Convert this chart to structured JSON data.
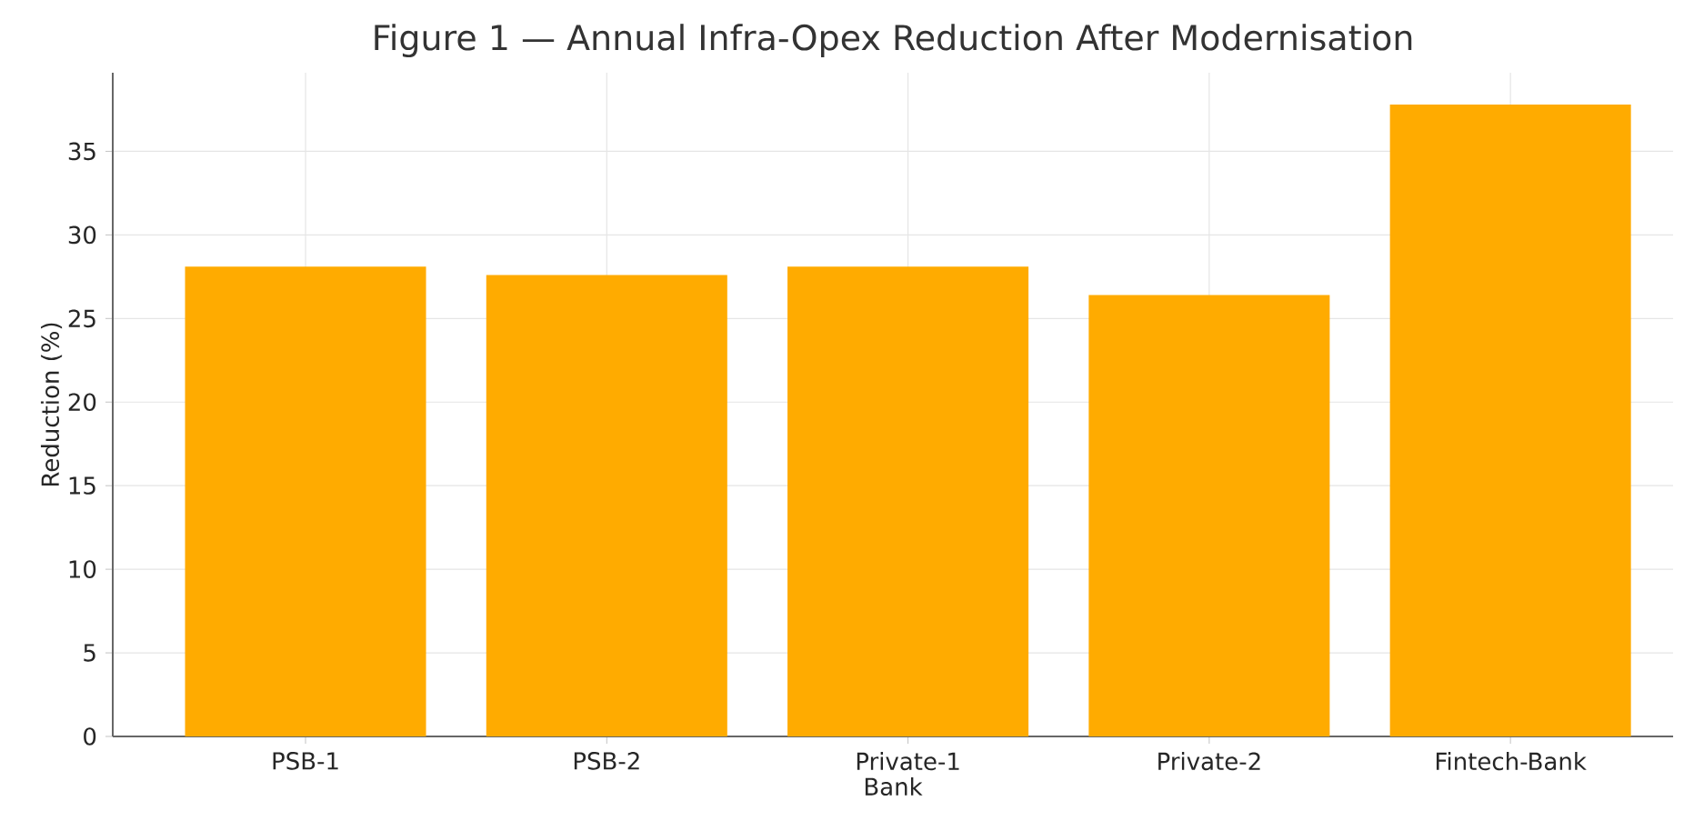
{
  "chart_data": {
    "type": "bar",
    "title": "Figure 1 — Annual Infra-Opex Reduction After Modernisation",
    "xlabel": "Bank",
    "ylabel": "Reduction (%)",
    "categories": [
      "PSB-1",
      "PSB-2",
      "Private-1",
      "Private-2",
      "Fintech-Bank"
    ],
    "values": [
      28.1,
      27.6,
      28.1,
      26.4,
      37.8
    ],
    "color": "#ffab00",
    "ylim": [
      0,
      39.7
    ],
    "yticks": [
      0,
      5,
      10,
      15,
      20,
      25,
      30,
      35
    ],
    "grid": true
  }
}
